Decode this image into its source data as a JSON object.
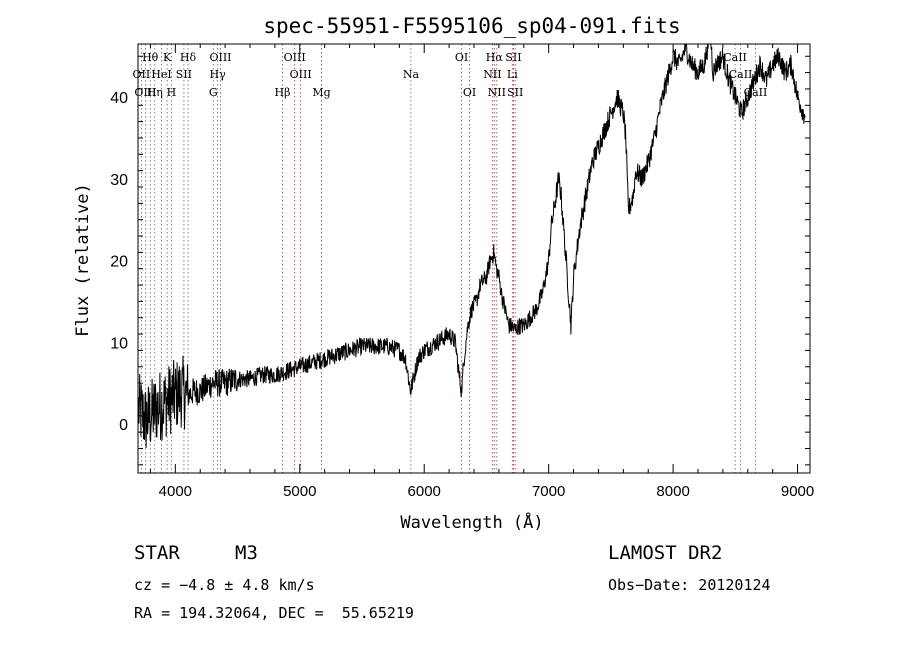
{
  "chart_data": {
    "type": "line",
    "title": "spec-55951-F5595106_sp04-091.fits",
    "xlabel": "Wavelength (Å)",
    "ylabel": "Flux (relative)",
    "xlim": [
      3700,
      9100
    ],
    "ylim": [
      -6,
      46.5
    ],
    "xticks": [
      4000,
      5000,
      6000,
      7000,
      8000,
      9000
    ],
    "yticks": [
      0,
      10,
      20,
      30,
      40
    ],
    "spectrum_anchor_points": {
      "x": [
        3700,
        3760,
        3800,
        3850,
        3900,
        3950,
        4000,
        4050,
        4100,
        4150,
        4200,
        4250,
        4300,
        4400,
        4500,
        4600,
        4700,
        4800,
        4900,
        5000,
        5100,
        5200,
        5300,
        5400,
        5500,
        5600,
        5700,
        5800,
        5850,
        5890,
        5920,
        5950,
        6000,
        6050,
        6100,
        6150,
        6200,
        6250,
        6280,
        6300,
        6320,
        6350,
        6380,
        6420,
        6450,
        6500,
        6530,
        6560,
        6580,
        6600,
        6620,
        6650,
        6680,
        6700,
        6730,
        6760,
        6800,
        6850,
        6900,
        6950,
        7000,
        7020,
        7050,
        7080,
        7100,
        7120,
        7150,
        7180,
        7200,
        7250,
        7300,
        7350,
        7400,
        7450,
        7500,
        7550,
        7600,
        7620,
        7640,
        7680,
        7700,
        7750,
        7800,
        7850,
        7900,
        7950,
        8000,
        8050,
        8100,
        8150,
        8200,
        8250,
        8300,
        8320,
        8350,
        8400,
        8450,
        8500,
        8550,
        8600,
        8650,
        8700,
        8750,
        8800,
        8850,
        8900,
        8950,
        9000,
        9050
      ],
      "y": [
        2,
        0.5,
        1,
        2,
        2.5,
        3,
        3.5,
        4,
        3.5,
        4,
        4,
        4.5,
        5,
        5,
        5.5,
        5.5,
        6,
        6,
        6.5,
        7,
        7.5,
        8,
        8.5,
        9,
        9.5,
        9.5,
        9.5,
        9,
        8,
        4,
        6,
        8,
        9,
        9.5,
        10,
        10.5,
        11,
        10,
        6,
        4,
        8,
        12,
        14,
        15,
        17,
        18,
        20,
        21,
        19,
        18,
        16,
        14,
        12,
        12,
        11.5,
        12,
        12,
        13,
        14,
        16,
        20,
        24,
        27,
        30,
        28,
        24,
        18,
        12,
        18,
        24,
        28,
        32,
        34,
        36,
        38,
        40,
        38,
        35,
        26,
        28,
        31,
        30,
        32,
        35,
        39,
        42,
        45,
        44,
        46,
        44,
        43,
        44,
        48,
        43,
        44,
        45,
        42,
        40,
        38,
        40,
        42,
        44,
        42,
        44,
        45,
        43,
        44,
        40,
        38
      ]
    },
    "lines_upper": [
      {
        "label": "Hθ",
        "x": 3798
      },
      {
        "label": "K",
        "x": 3934
      },
      {
        "label": "Hδ",
        "x": 4102
      },
      {
        "label": "OIII",
        "x": 4363
      },
      {
        "label": "OIII",
        "x": 4959
      },
      {
        "label": "OI",
        "x": 6300
      },
      {
        "label": "Hα",
        "x": 6563
      },
      {
        "label": "SII",
        "x": 6717
      },
      {
        "label": "CaII",
        "x": 8498
      }
    ],
    "lines_middle": [
      {
        "label": "OII",
        "x": 3727
      },
      {
        "label": "HeI",
        "x": 3889
      },
      {
        "label": "SII",
        "x": 4069
      },
      {
        "label": "Hγ",
        "x": 4340
      },
      {
        "label": "OIII",
        "x": 5007
      },
      {
        "label": "Na",
        "x": 5893
      },
      {
        "label": "NII",
        "x": 6548
      },
      {
        "label": "Li",
        "x": 6708
      },
      {
        "label": "CaII",
        "x": 8542
      }
    ],
    "lines_lower": [
      {
        "label": "OIII",
        "x": 3760
      },
      {
        "label": "Hη",
        "x": 3835
      },
      {
        "label": "H",
        "x": 3969
      },
      {
        "label": "G",
        "x": 4305
      },
      {
        "label": "Hβ",
        "x": 4861
      },
      {
        "label": "Mg",
        "x": 5175
      },
      {
        "label": "OI",
        "x": 6364
      },
      {
        "label": "NII",
        "x": 6583
      },
      {
        "label": "SII",
        "x": 6731
      },
      {
        "label": "CaII",
        "x": 8662
      }
    ]
  },
  "info": {
    "class_label": "STAR",
    "subclass_label": "M3",
    "survey_label": "LAMOST DR2",
    "cz_text": "cz = −4.8 ± 4.8 km/s",
    "obsdate_text": "Obs−Date: 20120124",
    "radec_text": "RA = 194.32064, DEC =  55.65219"
  },
  "colors": {
    "spectrum": "#000000",
    "line_marker": "#c0392b",
    "line_marker_alt": "#666666",
    "axis": "#000000"
  }
}
